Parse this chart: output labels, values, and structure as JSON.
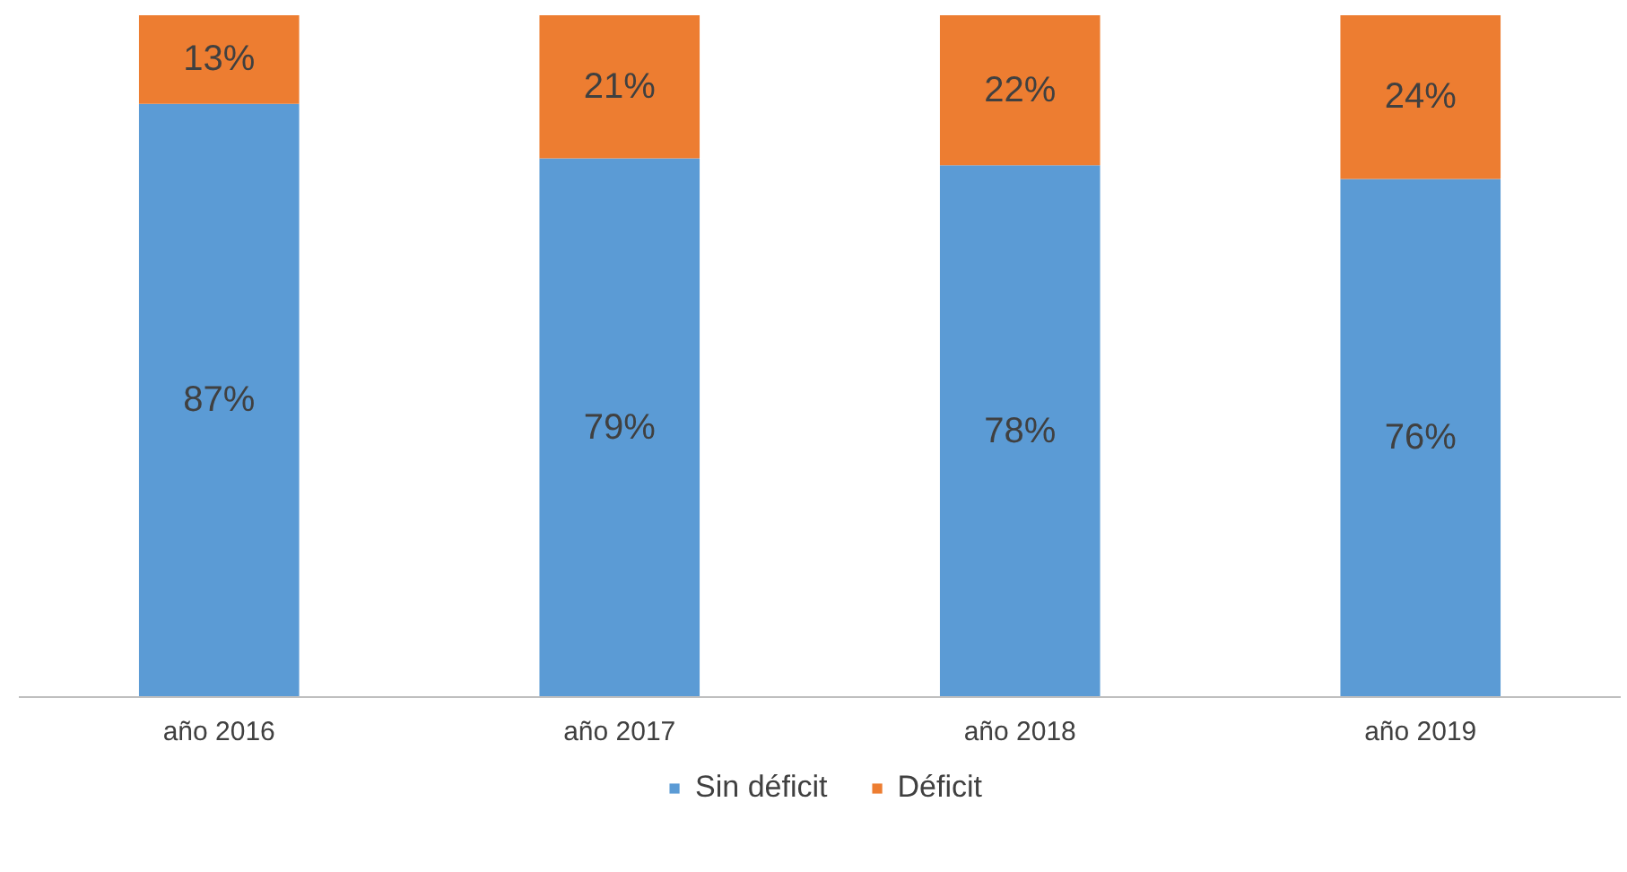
{
  "chart_data": {
    "type": "bar",
    "stacked": true,
    "categories": [
      "año 2016",
      "año 2017",
      "año 2018",
      "año 2019"
    ],
    "series": [
      {
        "name": "Sin déficit",
        "color": "#5b9bd5",
        "values": [
          87,
          79,
          78,
          76
        ],
        "value_labels": [
          "87%",
          "79%",
          "78%",
          "76%"
        ]
      },
      {
        "name": "Déficit",
        "color": "#ed7d31",
        "values": [
          13,
          21,
          22,
          24
        ],
        "value_labels": [
          "13%",
          "21%",
          "22%",
          "24%"
        ]
      }
    ],
    "ylim": [
      0,
      100
    ],
    "tick_labels": "x",
    "grid": false,
    "legend": "bottom"
  }
}
